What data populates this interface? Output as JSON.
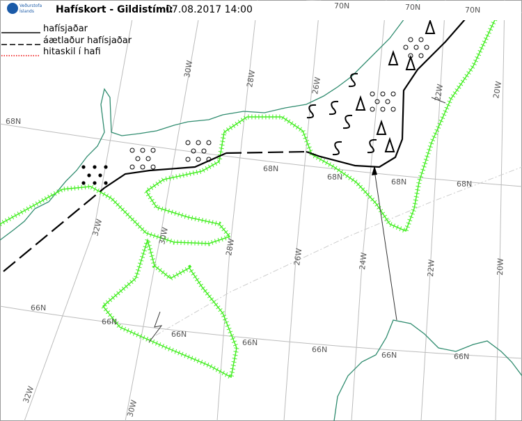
{
  "header": {
    "logo": [
      "Veðurstofa",
      "Íslands"
    ],
    "title": "Hafískort - Gildistími:",
    "valid_time": "07.08.2017 14:00"
  },
  "legend": [
    "hafísjaðar",
    "áætlaður hafísjaðar",
    "hitaskil í hafi"
  ],
  "grid_labels": [
    "70N",
    "70N",
    "70N",
    "68N",
    "68N",
    "68N",
    "68N",
    "68N",
    "66N",
    "66N",
    "66N",
    "66N",
    "66N",
    "66N",
    "66N",
    "30W",
    "28W",
    "26W",
    "22W",
    "20W",
    "32W",
    "30W",
    "28W",
    "26W",
    "24W",
    "22W",
    "20W",
    "32W",
    "30W"
  ]
}
